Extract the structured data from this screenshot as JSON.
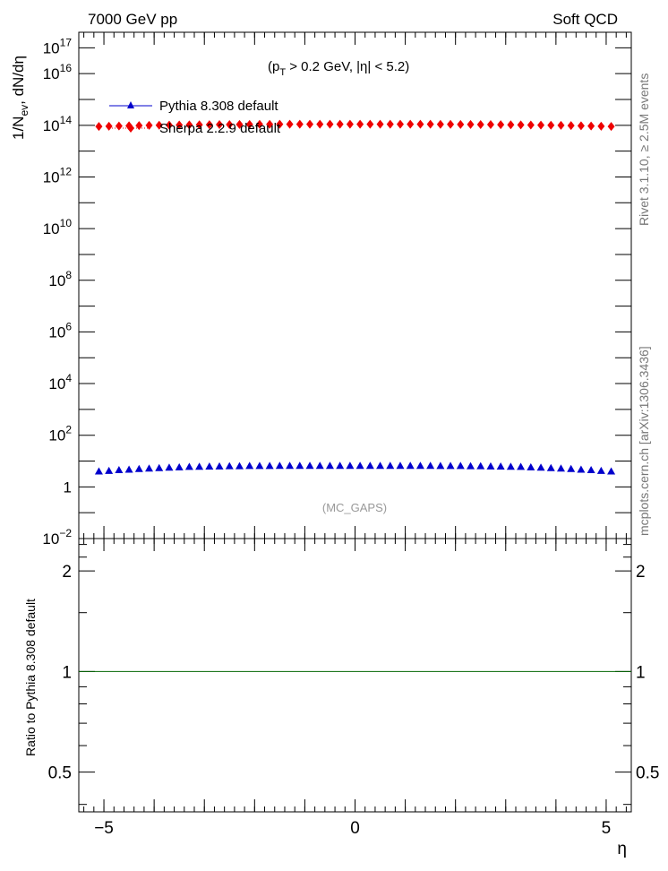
{
  "header": {
    "left": "7000 GeV pp",
    "right": "Soft QCD"
  },
  "side_labels": {
    "rivet": "Rivet 3.1.10, ≥ 2.5M events",
    "mcplots": "mcplots.cern.ch [arXiv:1306.3436]"
  },
  "colors": {
    "pythia": "#0000cc",
    "sherpa": "#ee0000",
    "ratio_line": "#006400",
    "axis": "#000000",
    "note": "#999999"
  },
  "chart_data": [
    {
      "type": "scatter",
      "title": "",
      "cut_label": {
        "open": "(p",
        "sub": "T",
        "rest": " > 0.2 GeV, |η| < 5.2)"
      },
      "ylabel": {
        "prefix": "1/N",
        "sub": "ev",
        "suffix": ", dN/dη"
      },
      "analysis_note": "(MC_GAPS)",
      "y_scale": "log",
      "ylim": [
        0.01,
        400000000000000000
      ],
      "xlim": [
        -5.5,
        5.5
      ],
      "y_ticks": [
        {
          "base": "10",
          "exp": "−2",
          "value": 0.01
        },
        {
          "base": "1",
          "exp": "",
          "value": 1
        },
        {
          "base": "10",
          "exp": "2",
          "value": 100
        },
        {
          "base": "10",
          "exp": "4",
          "value": 10000
        },
        {
          "base": "10",
          "exp": "6",
          "value": 1000000
        },
        {
          "base": "10",
          "exp": "8",
          "value": 100000000
        },
        {
          "base": "10",
          "exp": "10",
          "value": 10000000000
        },
        {
          "base": "10",
          "exp": "12",
          "value": 1000000000000
        },
        {
          "base": "10",
          "exp": "14",
          "value": 100000000000000
        },
        {
          "base": "10",
          "exp": "16",
          "value": 10000000000000000
        },
        {
          "base": "10",
          "exp": "17",
          "value": 100000000000000000
        }
      ],
      "legend_position": "top-left",
      "x": [
        -5.1,
        -4.9,
        -4.7,
        -4.5,
        -4.3,
        -4.1,
        -3.9,
        -3.7,
        -3.5,
        -3.3,
        -3.1,
        -2.9,
        -2.7,
        -2.5,
        -2.3,
        -2.1,
        -1.9,
        -1.7,
        -1.5,
        -1.3,
        -1.1,
        -0.9,
        -0.7,
        -0.5,
        -0.3,
        -0.1,
        0.1,
        0.3,
        0.5,
        0.7,
        0.9,
        1.1,
        1.3,
        1.5,
        1.7,
        1.9,
        2.1,
        2.3,
        2.5,
        2.7,
        2.9,
        3.1,
        3.3,
        3.5,
        3.7,
        3.9,
        4.1,
        4.3,
        4.5,
        4.7,
        4.9,
        5.1
      ],
      "series": [
        {
          "name": "Pythia 8.308 default",
          "marker": "triangle",
          "values": [
            4.0,
            4.2,
            4.5,
            4.7,
            5.0,
            5.2,
            5.4,
            5.6,
            5.8,
            6.0,
            6.1,
            6.2,
            6.3,
            6.4,
            6.4,
            6.5,
            6.5,
            6.5,
            6.6,
            6.6,
            6.6,
            6.6,
            6.6,
            6.6,
            6.6,
            6.6,
            6.6,
            6.6,
            6.6,
            6.6,
            6.6,
            6.6,
            6.6,
            6.6,
            6.5,
            6.5,
            6.5,
            6.4,
            6.4,
            6.3,
            6.2,
            6.1,
            6.0,
            5.8,
            5.6,
            5.4,
            5.2,
            5.0,
            4.7,
            4.5,
            4.2,
            4.0
          ]
        },
        {
          "name": "Sherpa 2.2.9 default",
          "marker": "diamond",
          "values": [
            90000000000000,
            92000000000000,
            94000000000000,
            96000000000000,
            98000000000000,
            100000000000000,
            101000000000000,
            102000000000000,
            103000000000000,
            104000000000000,
            105000000000000,
            106000000000000,
            107000000000000,
            107000000000000,
            108000000000000,
            108000000000000,
            109000000000000,
            109000000000000,
            110000000000000,
            110000000000000,
            110000000000000,
            110000000000000,
            110000000000000,
            110000000000000,
            110000000000000,
            110000000000000,
            110000000000000,
            110000000000000,
            110000000000000,
            110000000000000,
            110000000000000,
            110000000000000,
            110000000000000,
            110000000000000,
            109000000000000,
            109000000000000,
            108000000000000,
            108000000000000,
            107000000000000,
            107000000000000,
            106000000000000,
            105000000000000,
            104000000000000,
            103000000000000,
            102000000000000,
            101000000000000,
            100000000000000,
            98000000000000,
            96000000000000,
            94000000000000,
            92000000000000,
            90000000000000
          ]
        }
      ]
    },
    {
      "type": "line",
      "title": "",
      "ylabel": "Ratio to Pythia 8.308 default",
      "xlabel": "η",
      "y_scale": "log",
      "ylim": [
        0.38,
        2.5
      ],
      "xlim": [
        -5.5,
        5.5
      ],
      "y_ticks": [
        {
          "label": "0.5",
          "value": 0.5
        },
        {
          "label": "1",
          "value": 1
        },
        {
          "label": "2",
          "value": 2
        }
      ],
      "x_ticks": [
        {
          "label": "−5",
          "value": -5
        },
        {
          "label": "0",
          "value": 0
        },
        {
          "label": "5",
          "value": 5
        }
      ],
      "series": [
        {
          "name": "Pythia 8.308 default",
          "x": [
            -5.5,
            5.5
          ],
          "values": [
            1,
            1
          ]
        }
      ]
    }
  ]
}
